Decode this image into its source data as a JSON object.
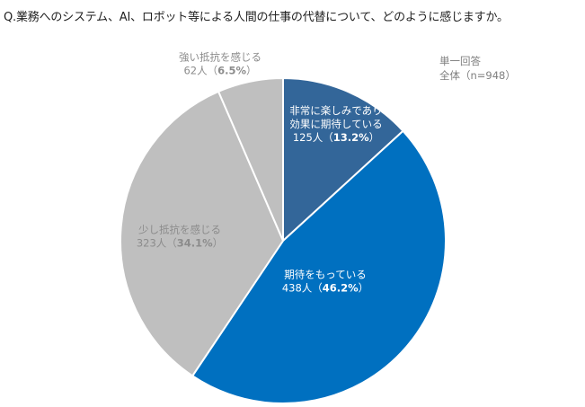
{
  "question": "Q.業務へのシステム、AI、ロボット等による人間の仕事の代替について、どのように感じますか。",
  "meta": {
    "type": "単一回答",
    "base": "全体（n=948）"
  },
  "chart_data": {
    "type": "pie",
    "start": "12 o'clock, clockwise",
    "slices": [
      {
        "label_lines": [
          "非常に楽しみであり",
          "効果に期待している"
        ],
        "count": "125人",
        "percent": 13.2,
        "color": "#336699"
      },
      {
        "label_lines": [
          "期待をもっている"
        ],
        "count": "438人",
        "percent": 46.2,
        "color": "#0070c0"
      },
      {
        "label_lines": [
          "少し抵抗を感じる"
        ],
        "count": "323人",
        "percent": 34.1,
        "color": "#bfbfbf"
      },
      {
        "label_lines": [
          "強い抵抗を感じる"
        ],
        "count": "62人",
        "percent": 6.5,
        "color": "#bfbfbf"
      }
    ]
  }
}
